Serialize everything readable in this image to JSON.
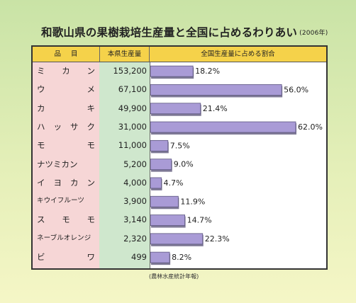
{
  "title": "和歌山県の果樹栽培生産量と全国に占めるわりあい",
  "year": "(2006年)",
  "header": {
    "item": "品目",
    "production": "本県生産量",
    "share": "全国生産量に占める割合"
  },
  "source": "(農林水産統計年報)",
  "colors": {
    "bar": "#a99bd6",
    "bar_shadow": "#7f7a96",
    "name_bg": "#f6d6d6",
    "value_bg": "#cfe7cd",
    "header_bg": "#f5d24a"
  },
  "chart_data": {
    "type": "bar",
    "orientation": "horizontal",
    "categories": [
      "ミカン",
      "ウメ",
      "カキ",
      "ハッサク",
      "モモ",
      "ナツミカン",
      "イヨカン",
      "キウイフルーツ",
      "スモモ",
      "ネーブルオレンジ",
      "ビワ"
    ],
    "production": [
      "153,200",
      "67,100",
      "49,900",
      "31,000",
      "11,000",
      "5,200",
      "4,000",
      "3,900",
      "3,140",
      "2,320",
      "499"
    ],
    "values": [
      18.2,
      56.0,
      21.4,
      62.0,
      7.5,
      9.0,
      4.7,
      11.9,
      14.7,
      22.3,
      8.2
    ],
    "labels": [
      "18.2%",
      "56.0%",
      "21.4%",
      "62.0%",
      "7.5%",
      "9.0%",
      "4.7%",
      "11.9%",
      "14.7%",
      "22.3%",
      "8.2%"
    ],
    "xlim": [
      0,
      62
    ]
  }
}
